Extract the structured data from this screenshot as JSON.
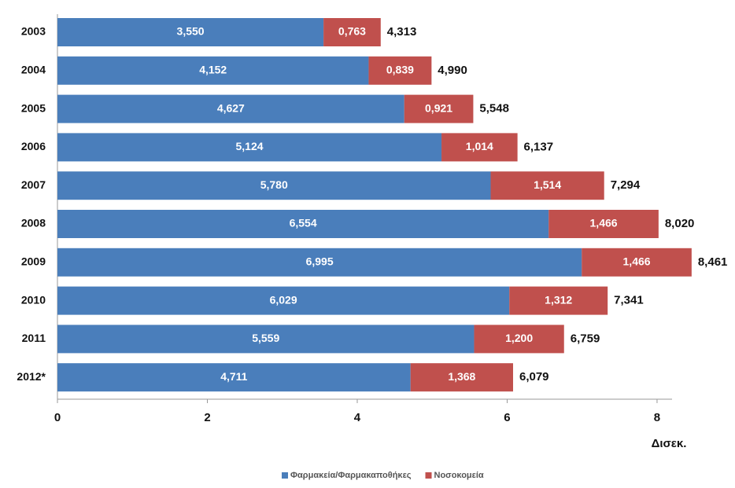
{
  "chart_data": {
    "type": "stacked-barh",
    "categories": [
      "2003",
      "2004",
      "2005",
      "2006",
      "2007",
      "2008",
      "2009",
      "2010",
      "2011",
      "2012*"
    ],
    "series": [
      {
        "name": "Φαρμακεία/Φαρμακαποθήκες",
        "color": "#4a7ebb",
        "values": [
          3.55,
          4.152,
          4.627,
          5.124,
          5.78,
          6.554,
          6.995,
          6.029,
          5.559,
          4.711
        ],
        "value_labels": [
          "3,550",
          "4,152",
          "4,627",
          "5,124",
          "5,780",
          "6,554",
          "6,995",
          "6,029",
          "5,559",
          "4,711"
        ]
      },
      {
        "name": "Νοσοκομεία",
        "color": "#c0504d",
        "values": [
          0.763,
          0.839,
          0.921,
          1.014,
          1.514,
          1.466,
          1.466,
          1.312,
          1.2,
          1.368
        ],
        "value_labels": [
          "0,763",
          "0,839",
          "0,921",
          "1,014",
          "1,514",
          "1,466",
          "1,466",
          "1,312",
          "1,200",
          "1,368"
        ]
      }
    ],
    "totals": {
      "values": [
        4.313,
        4.99,
        5.548,
        6.137,
        7.294,
        8.02,
        8.461,
        7.341,
        6.759,
        6.079
      ],
      "value_labels": [
        "4,313",
        "4,990",
        "5,548",
        "6,137",
        "7,294",
        "8,020",
        "8,461",
        "7,341",
        "6,759",
        "6,079"
      ]
    },
    "xlabel": "Δισεκ.",
    "xlim": [
      0,
      8.2
    ],
    "xticks": [
      0,
      2,
      4,
      6,
      8
    ],
    "legend": "bottom"
  }
}
